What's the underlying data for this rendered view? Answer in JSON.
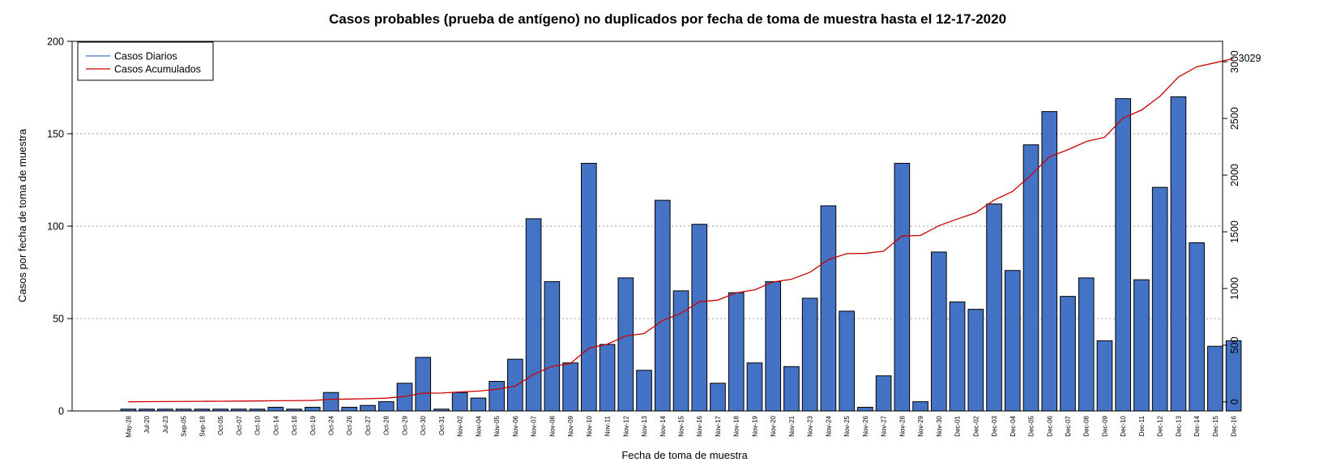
{
  "chart_data": {
    "type": "bar",
    "title": "Casos probables (prueba de antígeno) no duplicados por fecha de toma de muestra hasta el 12-17-2020",
    "xlabel": "Fecha de toma de muestra",
    "ylabel": "Casos por fecha de toma de muestra",
    "ylim": [
      0,
      200
    ],
    "y_ticks": [
      0,
      50,
      100,
      150,
      200
    ],
    "y2lim": [
      -80,
      3180
    ],
    "y2_ticks": [
      0,
      500,
      1000,
      1500,
      2000,
      2500,
      3000
    ],
    "grid": "horizontal dotted",
    "legend_position": "top-left",
    "categories": [
      "May-28",
      "Jul-20",
      "Jul-23",
      "Sep-05",
      "Sep-18",
      "Oct-05",
      "Oct-07",
      "Oct-10",
      "Oct-14",
      "Oct-18",
      "Oct-19",
      "Oct-24",
      "Oct-26",
      "Oct-27",
      "Oct-28",
      "Oct-29",
      "Oct-30",
      "Oct-31",
      "Nov-02",
      "Nov-04",
      "Nov-05",
      "Nov-06",
      "Nov-07",
      "Nov-08",
      "Nov-09",
      "Nov-10",
      "Nov-11",
      "Nov-12",
      "Nov-13",
      "Nov-14",
      "Nov-15",
      "Nov-16",
      "Nov-17",
      "Nov-18",
      "Nov-19",
      "Nov-20",
      "Nov-21",
      "Nov-23",
      "Nov-24",
      "Nov-25",
      "Nov-26",
      "Nov-27",
      "Nov-28",
      "Nov-29",
      "Nov-30",
      "Dec-01",
      "Dec-02",
      "Dec-03",
      "Dec-04",
      "Dec-05",
      "Dec-06",
      "Dec-07",
      "Dec-08",
      "Dec-09",
      "Dec-10",
      "Dec-11",
      "Dec-12",
      "Dec-13",
      "Dec-14",
      "Dec-15",
      "Dec-16"
    ],
    "series": [
      {
        "name": "Casos Diarios",
        "type": "bar",
        "axis": "left",
        "color": "#4472C4",
        "values": [
          1,
          1,
          1,
          1,
          1,
          1,
          1,
          1,
          2,
          1,
          2,
          10,
          2,
          3,
          5,
          15,
          29,
          1,
          10,
          7,
          16,
          28,
          104,
          70,
          26,
          134,
          36,
          72,
          22,
          114,
          65,
          101,
          15,
          64,
          26,
          70,
          24,
          61,
          111,
          54,
          2,
          19,
          134,
          5,
          86,
          59,
          55,
          112,
          76,
          144,
          162,
          62,
          72,
          38,
          169,
          71,
          121,
          170,
          91,
          35,
          38
        ]
      },
      {
        "name": "Casos Acumulados",
        "type": "line",
        "axis": "right",
        "color": "#CC0000",
        "values": [
          1,
          2,
          3,
          4,
          5,
          6,
          7,
          8,
          10,
          11,
          13,
          23,
          25,
          28,
          33,
          48,
          77,
          78,
          88,
          95,
          111,
          139,
          243,
          313,
          339,
          473,
          509,
          581,
          603,
          717,
          782,
          883,
          898,
          962,
          988,
          1058,
          1082,
          1143,
          1254,
          1308,
          1310,
          1329,
          1463,
          1468,
          1554,
          1613,
          1668,
          1780,
          1856,
          2000,
          2162,
          2224,
          2296,
          2334,
          2503,
          2574,
          2695,
          2865,
          2956,
          2991,
          3029
        ]
      }
    ],
    "annotations": [
      {
        "text": "3029",
        "series": "Casos Acumulados",
        "at": "last"
      }
    ]
  }
}
